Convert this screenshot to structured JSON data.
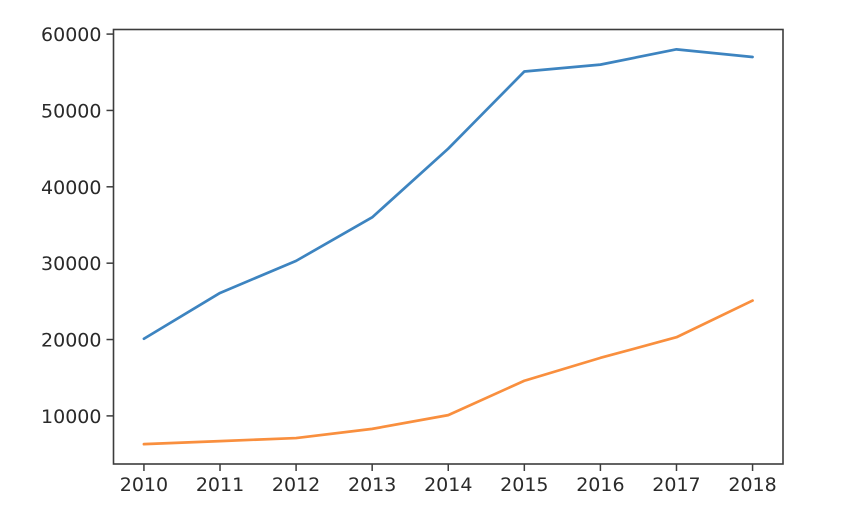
{
  "figure": {
    "background": "#ffffff",
    "spine_color": "#3c3c3c",
    "tick_color": "#3c3c3c",
    "tick_label_color": "#2a2a2a"
  },
  "chart_data": {
    "type": "line",
    "title": "",
    "xlabel": "",
    "ylabel": "",
    "grid": false,
    "legend_position": "none",
    "x": [
      2010,
      2011,
      2012,
      2013,
      2014,
      2015,
      2016,
      2017,
      2018
    ],
    "xticks": [
      2010,
      2011,
      2012,
      2013,
      2014,
      2015,
      2016,
      2017,
      2018
    ],
    "yticks": [
      10000,
      20000,
      30000,
      40000,
      50000,
      60000
    ],
    "xlim": [
      2009.6,
      2018.4
    ],
    "ylim": [
      3700,
      60600
    ],
    "series": [
      {
        "name": "series-blue",
        "color": "#3d84c0",
        "values": [
          20100,
          26100,
          30300,
          36000,
          45000,
          55100,
          56000,
          58000,
          57000
        ]
      },
      {
        "name": "series-orange",
        "color": "#f98f3e",
        "values": [
          6300,
          6700,
          7100,
          8300,
          10100,
          14600,
          17600,
          20300,
          25100
        ]
      }
    ]
  }
}
